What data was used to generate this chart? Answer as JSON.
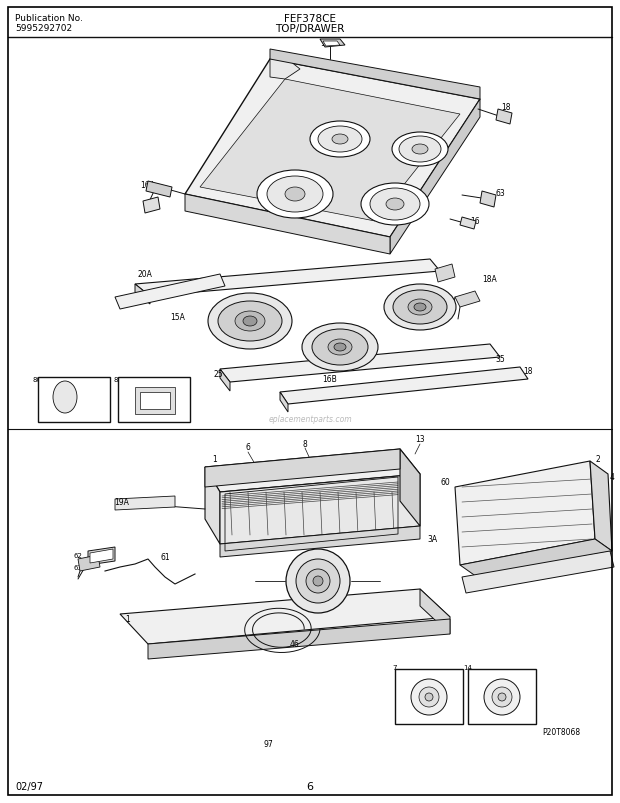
{
  "title_model": "FEF378CE",
  "title_section": "TOP/DRAWER",
  "pub_label": "Publication No.",
  "pub_number": "5995292702",
  "date_label": "02/97",
  "page_number": "6",
  "footer_code": "P20T8068",
  "bg_color": "#ffffff",
  "fig_width": 6.2,
  "fig_height": 8.04,
  "dpi": 100,
  "lc": "#111111",
  "lw": 0.7
}
